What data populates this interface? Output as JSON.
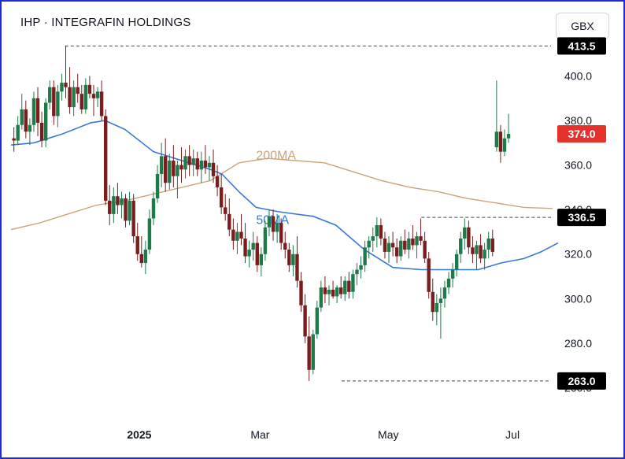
{
  "header": {
    "title": "IHP · INTEGRAFIN HOLDINGS",
    "currency_button": "GBX"
  },
  "colors": {
    "up": "#1f7a4a",
    "down": "#7a1d1d",
    "ma50": "#3a78d8",
    "ma200": "#caa57a",
    "last_price_tag": "#e5322d",
    "level_tag": "#000000",
    "frame": "#1d2bd8"
  },
  "chart_data": {
    "type": "candlestick",
    "title": "IHP · INTEGRAFIN HOLDINGS",
    "currency": "GBX",
    "y_axis_ticks": [
      "400.0",
      "380.0",
      "360.0",
      "340.0",
      "320.0",
      "300.0",
      "280.0",
      "260.0"
    ],
    "ylim": [
      252,
      420
    ],
    "x_axis_ticks": [
      {
        "label": "2025",
        "pos": 0.225
      },
      {
        "label": "Mar",
        "pos": 0.437
      },
      {
        "label": "May",
        "pos": 0.662
      },
      {
        "label": "Jul",
        "pos": 0.88
      }
    ],
    "x_axis_bold": "2025",
    "levels": [
      {
        "label": "413.5",
        "value": 413.5,
        "from": 0.095
      },
      {
        "label": "336.5",
        "value": 336.5,
        "from": 0.72
      },
      {
        "label": "263.0",
        "value": 263.0,
        "from": 0.58
      }
    ],
    "last_price": {
      "label": "374.0",
      "value": 374.0
    },
    "moving_averages": [
      {
        "name": "200MA",
        "label_pos": [
          0.43,
          362.5
        ],
        "points": [
          [
            0.0,
            331
          ],
          [
            0.05,
            334
          ],
          [
            0.1,
            338
          ],
          [
            0.15,
            342
          ],
          [
            0.2,
            344
          ],
          [
            0.25,
            347
          ],
          [
            0.3,
            350
          ],
          [
            0.35,
            353
          ],
          [
            0.4,
            361
          ],
          [
            0.45,
            363
          ],
          [
            0.5,
            362
          ],
          [
            0.55,
            361
          ],
          [
            0.6,
            357
          ],
          [
            0.65,
            353
          ],
          [
            0.7,
            350
          ],
          [
            0.75,
            348
          ],
          [
            0.8,
            345
          ],
          [
            0.85,
            343
          ],
          [
            0.9,
            341
          ],
          [
            0.95,
            340.5
          ]
        ]
      },
      {
        "name": "50MA",
        "label_pos": [
          0.43,
          333.5
        ],
        "points": [
          [
            0.0,
            369
          ],
          [
            0.04,
            370
          ],
          [
            0.09,
            374
          ],
          [
            0.14,
            379
          ],
          [
            0.165,
            380
          ],
          [
            0.2,
            376
          ],
          [
            0.25,
            366
          ],
          [
            0.3,
            362
          ],
          [
            0.35,
            358
          ],
          [
            0.37,
            356
          ],
          [
            0.4,
            348
          ],
          [
            0.43,
            341
          ],
          [
            0.47,
            339
          ],
          [
            0.53,
            337
          ],
          [
            0.57,
            333
          ],
          [
            0.62,
            322
          ],
          [
            0.67,
            314
          ],
          [
            0.72,
            313
          ],
          [
            0.78,
            313
          ],
          [
            0.82,
            313
          ],
          [
            0.86,
            316
          ],
          [
            0.9,
            318
          ],
          [
            0.93,
            321
          ],
          [
            0.96,
            325
          ]
        ]
      }
    ],
    "candles": [
      [
        0.005,
        372,
        377,
        366,
        371
      ],
      [
        0.012,
        371,
        382,
        369,
        378
      ],
      [
        0.019,
        378,
        392,
        376,
        385
      ],
      [
        0.026,
        385,
        389,
        372,
        375
      ],
      [
        0.033,
        375,
        381,
        369,
        378
      ],
      [
        0.04,
        378,
        393,
        375,
        390
      ],
      [
        0.047,
        390,
        395,
        373,
        379
      ],
      [
        0.054,
        379,
        384,
        368,
        371
      ],
      [
        0.061,
        371,
        390,
        368,
        388
      ],
      [
        0.068,
        388,
        398,
        385,
        395
      ],
      [
        0.075,
        395,
        398,
        378,
        382
      ],
      [
        0.082,
        382,
        396,
        377,
        393
      ],
      [
        0.089,
        393,
        401,
        389,
        397
      ],
      [
        0.096,
        397,
        413.5,
        390,
        395
      ],
      [
        0.103,
        395,
        404,
        383,
        386
      ],
      [
        0.11,
        386,
        398,
        382,
        395
      ],
      [
        0.117,
        395,
        401,
        388,
        392
      ],
      [
        0.124,
        392,
        396,
        383,
        385
      ],
      [
        0.131,
        385,
        399,
        383,
        396
      ],
      [
        0.138,
        396,
        400,
        390,
        392
      ],
      [
        0.145,
        392,
        396,
        382,
        390
      ],
      [
        0.152,
        390,
        395,
        386,
        393
      ],
      [
        0.159,
        393,
        398,
        380,
        382
      ],
      [
        0.166,
        382,
        385,
        342,
        344
      ],
      [
        0.173,
        344,
        351,
        333,
        338
      ],
      [
        0.18,
        338,
        350,
        334,
        346
      ],
      [
        0.187,
        346,
        352,
        338,
        342
      ],
      [
        0.194,
        342,
        348,
        336,
        345
      ],
      [
        0.201,
        345,
        347,
        332,
        335
      ],
      [
        0.208,
        335,
        348,
        333,
        344
      ],
      [
        0.215,
        344,
        347,
        325,
        328
      ],
      [
        0.222,
        328,
        334,
        317,
        320
      ],
      [
        0.229,
        320,
        328,
        314,
        316
      ],
      [
        0.236,
        316,
        326,
        311,
        322
      ],
      [
        0.243,
        322,
        340,
        320,
        336
      ],
      [
        0.25,
        336,
        348,
        333,
        345
      ],
      [
        0.257,
        345,
        360,
        343,
        356
      ],
      [
        0.264,
        356,
        370,
        350,
        364
      ],
      [
        0.271,
        364,
        372,
        348,
        352
      ],
      [
        0.278,
        352,
        365,
        349,
        362
      ],
      [
        0.285,
        362,
        369,
        350,
        355
      ],
      [
        0.292,
        355,
        362,
        345,
        360
      ],
      [
        0.299,
        360,
        368,
        352,
        358
      ],
      [
        0.306,
        358,
        367,
        354,
        364
      ],
      [
        0.313,
        364,
        369,
        355,
        360
      ],
      [
        0.32,
        360,
        367,
        355,
        363
      ],
      [
        0.327,
        363,
        366,
        355,
        358
      ],
      [
        0.334,
        358,
        366,
        352,
        362
      ],
      [
        0.341,
        362,
        369,
        356,
        359
      ],
      [
        0.348,
        359,
        364,
        353,
        361
      ],
      [
        0.355,
        361,
        367,
        352,
        355
      ],
      [
        0.362,
        355,
        360,
        346,
        350
      ],
      [
        0.369,
        350,
        356,
        338,
        341
      ],
      [
        0.376,
        341,
        347,
        335,
        338
      ],
      [
        0.383,
        338,
        345,
        328,
        331
      ],
      [
        0.39,
        331,
        336,
        322,
        326
      ],
      [
        0.397,
        326,
        334,
        320,
        330
      ],
      [
        0.404,
        330,
        338,
        324,
        327
      ],
      [
        0.411,
        327,
        334,
        316,
        319
      ],
      [
        0.418,
        319,
        326,
        314,
        322
      ],
      [
        0.425,
        322,
        330,
        317,
        325
      ],
      [
        0.432,
        325,
        328,
        312,
        315
      ],
      [
        0.439,
        315,
        323,
        310,
        320
      ],
      [
        0.446,
        320,
        335,
        317,
        332
      ],
      [
        0.453,
        332,
        340,
        328,
        337
      ],
      [
        0.46,
        337,
        340,
        326,
        330
      ],
      [
        0.467,
        330,
        338,
        325,
        334
      ],
      [
        0.474,
        334,
        336,
        322,
        325
      ],
      [
        0.481,
        325,
        330,
        318,
        322
      ],
      [
        0.488,
        322,
        325,
        312,
        315
      ],
      [
        0.495,
        315,
        324,
        310,
        320
      ],
      [
        0.502,
        320,
        328,
        305,
        308
      ],
      [
        0.509,
        308,
        312,
        294,
        297
      ],
      [
        0.516,
        297,
        302,
        280,
        283
      ],
      [
        0.523,
        283,
        292,
        263,
        268
      ],
      [
        0.53,
        268,
        286,
        266,
        284
      ],
      [
        0.537,
        284,
        299,
        282,
        296
      ],
      [
        0.544,
        296,
        308,
        294,
        305
      ],
      [
        0.551,
        305,
        310,
        298,
        302
      ],
      [
        0.558,
        302,
        306,
        297,
        304
      ],
      [
        0.565,
        304,
        308,
        300,
        301
      ],
      [
        0.572,
        301,
        306,
        298,
        305
      ],
      [
        0.579,
        305,
        310,
        300,
        302
      ],
      [
        0.586,
        302,
        310,
        299,
        308
      ],
      [
        0.593,
        308,
        312,
        300,
        303
      ],
      [
        0.6,
        303,
        313,
        300,
        311
      ],
      [
        0.607,
        311,
        316,
        306,
        313
      ],
      [
        0.614,
        313,
        319,
        309,
        315
      ],
      [
        0.621,
        315,
        326,
        312,
        323
      ],
      [
        0.628,
        323,
        328,
        318,
        326
      ],
      [
        0.635,
        326,
        332,
        321,
        328
      ],
      [
        0.642,
        328,
        336.5,
        323,
        333
      ],
      [
        0.649,
        333,
        336,
        324,
        327
      ],
      [
        0.656,
        327,
        330,
        318,
        321
      ],
      [
        0.663,
        321,
        328,
        316,
        325
      ],
      [
        0.67,
        325,
        330,
        319,
        323
      ],
      [
        0.677,
        323,
        327,
        316,
        319
      ],
      [
        0.684,
        319,
        328,
        317,
        326
      ],
      [
        0.691,
        326,
        331,
        320,
        322
      ],
      [
        0.698,
        322,
        330,
        318,
        327
      ],
      [
        0.705,
        327,
        333,
        322,
        324
      ],
      [
        0.712,
        324,
        330,
        318,
        328
      ],
      [
        0.719,
        328,
        336,
        324,
        326
      ],
      [
        0.726,
        326,
        330,
        316,
        318
      ],
      [
        0.733,
        318,
        321,
        300,
        303
      ],
      [
        0.74,
        303,
        309,
        290,
        294
      ],
      [
        0.747,
        294,
        302,
        288,
        298
      ],
      [
        0.754,
        298,
        305,
        282,
        300
      ],
      [
        0.761,
        300,
        308,
        296,
        305
      ],
      [
        0.768,
        305,
        312,
        302,
        309
      ],
      [
        0.775,
        309,
        316,
        305,
        313
      ],
      [
        0.782,
        313,
        322,
        310,
        320
      ],
      [
        0.789,
        320,
        330,
        316,
        327
      ],
      [
        0.796,
        327,
        336,
        322,
        332
      ],
      [
        0.803,
        332,
        335,
        320,
        323
      ],
      [
        0.81,
        323,
        328,
        316,
        320
      ],
      [
        0.817,
        320,
        326,
        313,
        324
      ],
      [
        0.824,
        324,
        329,
        316,
        318
      ],
      [
        0.831,
        318,
        325,
        313,
        322
      ],
      [
        0.838,
        322,
        330,
        318,
        327
      ],
      [
        0.845,
        327,
        331,
        319,
        321
      ],
      [
        0.852,
        368,
        398,
        366,
        375
      ],
      [
        0.859,
        375,
        378,
        361,
        366
      ],
      [
        0.866,
        366,
        376,
        364,
        372
      ],
      [
        0.873,
        372,
        383,
        370,
        374
      ]
    ]
  }
}
